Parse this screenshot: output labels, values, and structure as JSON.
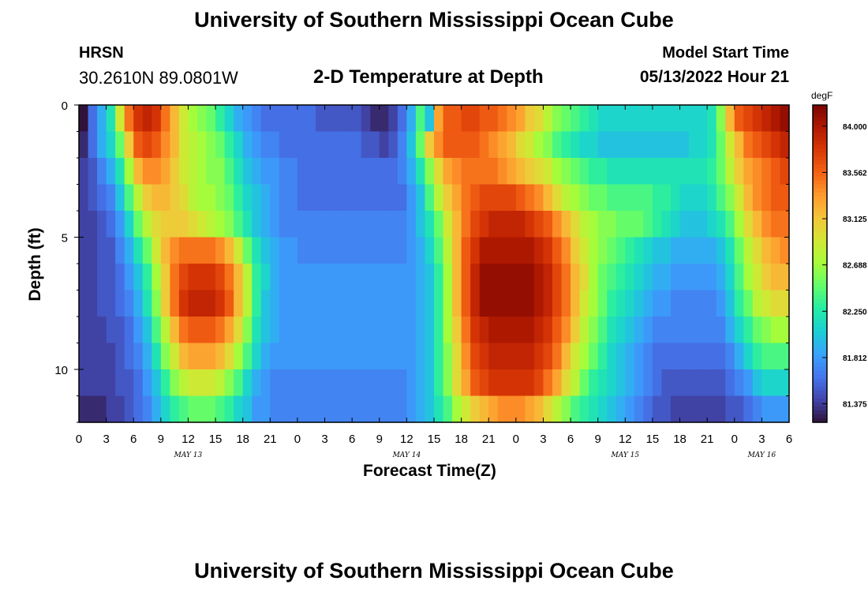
{
  "header": {
    "title": "University of Southern Mississippi Ocean Cube",
    "station": "HRSN",
    "coords": "30.2610N  89.0801W",
    "subtitle": "2-D Temperature at Depth",
    "model_start_label": "Model Start Time",
    "model_start_value": "05/13/2022 Hour 21"
  },
  "footer": {
    "title": "University of Southern Mississippi Ocean Cube"
  },
  "colors": {
    "background": "#ffffff",
    "colormap": [
      "#30123b",
      "#4145ab",
      "#4675ed",
      "#39a2fc",
      "#1bcfd4",
      "#24eca6",
      "#61fc6c",
      "#a4fc3b",
      "#d1e834",
      "#f3c63a",
      "#fe9b2d",
      "#f36315",
      "#d93806",
      "#b11901",
      "#7a0402"
    ]
  },
  "chart_data": {
    "type": "heatmap",
    "title": "2-D Temperature at Depth",
    "xlabel": "Forecast Time(Z)",
    "ylabel": "Depth (ft)",
    "x_unit": "hours since 05/13 00Z",
    "xlim": [
      0,
      78
    ],
    "ylim": [
      0,
      12
    ],
    "y_inverted": true,
    "x_tick_values": [
      0,
      3,
      6,
      9,
      12,
      15,
      18,
      21,
      24,
      27,
      30,
      33,
      36,
      39,
      42,
      45,
      48,
      51,
      54,
      57,
      60,
      63,
      66,
      69,
      72,
      75,
      78
    ],
    "x_tick_labels": [
      "0",
      "3",
      "6",
      "9",
      "12",
      "15",
      "18",
      "21",
      "0",
      "3",
      "6",
      "9",
      "12",
      "15",
      "18",
      "21",
      "0",
      "3",
      "6",
      "9",
      "12",
      "15",
      "18",
      "21",
      "0",
      "3",
      "6"
    ],
    "date_labels": [
      {
        "label": "MAY 13",
        "x": 12
      },
      {
        "label": "MAY 14",
        "x": 36
      },
      {
        "label": "MAY 15",
        "x": 60
      },
      {
        "label": "MAY 16",
        "x": 75
      }
    ],
    "y_tick_values": [
      0,
      5,
      10
    ],
    "y_tick_labels": [
      "0",
      "5",
      "10"
    ],
    "y_minor_ticks": [
      1,
      2,
      3,
      4,
      6,
      7,
      8,
      9,
      11,
      12
    ],
    "colorbar": {
      "unit": "degF",
      "min": 81.2,
      "max": 84.2,
      "tick_values": [
        84.0,
        83.562,
        83.125,
        82.688,
        82.25,
        81.812,
        81.375
      ],
      "tick_labels": [
        "84.000",
        "83.562",
        "83.125",
        "82.688",
        "82.250",
        "81.812",
        "81.375"
      ]
    },
    "grid": {
      "x_step_hours": 1,
      "depth_levels_ft": [
        0.5,
        1.5,
        2.5,
        3.5,
        4.5,
        5.5,
        6.5,
        7.5,
        8.5,
        9.5,
        10.5,
        11.5
      ],
      "time_hours": [
        0,
        1,
        2,
        3,
        4,
        5,
        6,
        7,
        8,
        9,
        10,
        11,
        12,
        13,
        14,
        15,
        16,
        17,
        18,
        19,
        20,
        21,
        22,
        23,
        24,
        25,
        26,
        27,
        28,
        29,
        30,
        31,
        32,
        33,
        34,
        35,
        36,
        37,
        38,
        39,
        40,
        41,
        42,
        43,
        44,
        45,
        46,
        47,
        48,
        49,
        50,
        51,
        52,
        53,
        54,
        55,
        56,
        57,
        58,
        59,
        60,
        61,
        62,
        63,
        64,
        65,
        66,
        67,
        68,
        69,
        70,
        71,
        72,
        73,
        74,
        75,
        76,
        77
      ],
      "temperature_degF": [
        [
          81.1,
          81.6,
          81.9,
          82.2,
          82.9,
          83.5,
          83.8,
          83.9,
          83.8,
          83.5,
          83.2,
          82.9,
          82.7,
          82.6,
          82.5,
          82.3,
          82.1,
          81.9,
          81.8,
          81.7,
          81.6,
          81.6,
          81.6,
          81.6,
          81.6,
          81.6,
          81.5,
          81.5,
          81.5,
          81.5,
          81.5,
          81.4,
          81.3,
          81.3,
          81.4,
          81.6,
          81.9,
          82.4,
          82.0,
          83.3,
          83.6,
          83.6,
          83.7,
          83.7,
          83.6,
          83.6,
          83.5,
          83.4,
          83.3,
          83.1,
          83.0,
          82.8,
          82.6,
          82.5,
          82.4,
          82.3,
          82.2,
          82.1,
          82.1,
          82.1,
          82.1,
          82.1,
          82.1,
          82.1,
          82.1,
          82.1,
          82.1,
          82.1,
          82.1,
          82.2,
          82.6,
          83.2,
          83.6,
          83.7,
          83.8,
          83.9,
          84.0,
          84.1
        ],
        [
          81.3,
          81.6,
          81.9,
          82.1,
          82.5,
          83.1,
          83.6,
          83.7,
          83.6,
          83.4,
          83.2,
          82.9,
          82.8,
          82.7,
          82.6,
          82.5,
          82.3,
          82.1,
          81.9,
          81.8,
          81.7,
          81.7,
          81.6,
          81.6,
          81.6,
          81.6,
          81.6,
          81.6,
          81.6,
          81.6,
          81.6,
          81.5,
          81.5,
          81.4,
          81.5,
          81.7,
          82.0,
          82.5,
          83.1,
          83.4,
          83.6,
          83.6,
          83.6,
          83.6,
          83.5,
          83.4,
          83.3,
          83.2,
          83.0,
          82.9,
          82.7,
          82.6,
          82.4,
          82.3,
          82.2,
          82.1,
          82.1,
          82.0,
          82.0,
          82.0,
          82.0,
          82.0,
          82.0,
          82.0,
          82.0,
          82.0,
          82.0,
          82.1,
          82.1,
          82.2,
          82.5,
          82.9,
          83.2,
          83.5,
          83.6,
          83.7,
          83.8,
          83.9
        ],
        [
          81.4,
          81.5,
          81.7,
          81.9,
          82.2,
          82.7,
          83.2,
          83.4,
          83.4,
          83.3,
          83.1,
          82.9,
          82.8,
          82.7,
          82.6,
          82.6,
          82.4,
          82.2,
          82.0,
          81.9,
          81.8,
          81.8,
          81.7,
          81.7,
          81.6,
          81.6,
          81.6,
          81.6,
          81.6,
          81.6,
          81.6,
          81.6,
          81.6,
          81.6,
          81.6,
          81.7,
          81.9,
          82.2,
          82.6,
          83.0,
          83.3,
          83.4,
          83.5,
          83.5,
          83.5,
          83.5,
          83.4,
          83.3,
          83.2,
          83.1,
          83.0,
          82.9,
          82.7,
          82.6,
          82.5,
          82.4,
          82.3,
          82.3,
          82.2,
          82.2,
          82.2,
          82.2,
          82.2,
          82.2,
          82.2,
          82.2,
          82.2,
          82.2,
          82.2,
          82.3,
          82.5,
          82.8,
          83.1,
          83.3,
          83.4,
          83.5,
          83.6,
          83.7
        ],
        [
          81.4,
          81.5,
          81.6,
          81.7,
          82.0,
          82.4,
          82.8,
          83.1,
          83.2,
          83.2,
          83.1,
          83.0,
          82.8,
          82.7,
          82.7,
          82.6,
          82.5,
          82.3,
          82.1,
          82.0,
          81.9,
          81.8,
          81.7,
          81.7,
          81.6,
          81.6,
          81.6,
          81.6,
          81.6,
          81.6,
          81.6,
          81.6,
          81.6,
          81.6,
          81.6,
          81.6,
          81.8,
          82.0,
          82.4,
          82.8,
          83.1,
          83.3,
          83.5,
          83.6,
          83.7,
          83.7,
          83.7,
          83.7,
          83.6,
          83.5,
          83.4,
          83.2,
          83.0,
          82.8,
          82.7,
          82.6,
          82.5,
          82.5,
          82.4,
          82.4,
          82.4,
          82.4,
          82.4,
          82.3,
          82.3,
          82.2,
          82.1,
          82.1,
          82.1,
          82.2,
          82.4,
          82.6,
          82.9,
          83.2,
          83.4,
          83.5,
          83.6,
          83.6
        ],
        [
          81.4,
          81.4,
          81.5,
          81.6,
          81.8,
          82.1,
          82.5,
          82.8,
          83.0,
          83.1,
          83.1,
          83.1,
          83.0,
          82.9,
          82.8,
          82.7,
          82.6,
          82.4,
          82.2,
          82.0,
          81.9,
          81.8,
          81.7,
          81.7,
          81.7,
          81.7,
          81.7,
          81.7,
          81.7,
          81.7,
          81.7,
          81.7,
          81.7,
          81.7,
          81.7,
          81.7,
          81.8,
          82.0,
          82.2,
          82.5,
          82.9,
          83.2,
          83.5,
          83.7,
          83.8,
          83.9,
          83.9,
          83.9,
          83.9,
          83.8,
          83.7,
          83.6,
          83.4,
          83.2,
          83.0,
          82.8,
          82.7,
          82.6,
          82.6,
          82.5,
          82.5,
          82.5,
          82.4,
          82.3,
          82.2,
          82.1,
          82.0,
          82.0,
          82.0,
          82.1,
          82.2,
          82.4,
          82.7,
          83.0,
          83.2,
          83.4,
          83.5,
          83.5
        ],
        [
          81.4,
          81.4,
          81.5,
          81.5,
          81.7,
          81.9,
          82.2,
          82.5,
          82.9,
          83.2,
          83.4,
          83.5,
          83.5,
          83.5,
          83.5,
          83.4,
          83.2,
          82.9,
          82.5,
          82.2,
          82.0,
          81.9,
          81.8,
          81.8,
          81.7,
          81.7,
          81.7,
          81.7,
          81.7,
          81.7,
          81.7,
          81.7,
          81.7,
          81.7,
          81.7,
          81.7,
          81.8,
          81.9,
          82.1,
          82.4,
          82.8,
          83.2,
          83.6,
          83.8,
          84.0,
          84.0,
          84.0,
          84.0,
          84.0,
          84.0,
          83.9,
          83.8,
          83.6,
          83.4,
          83.1,
          82.9,
          82.7,
          82.6,
          82.5,
          82.4,
          82.3,
          82.2,
          82.1,
          82.0,
          82.0,
          81.9,
          81.9,
          81.9,
          81.9,
          81.9,
          82.0,
          82.2,
          82.5,
          82.8,
          83.0,
          83.2,
          83.3,
          83.4
        ],
        [
          81.4,
          81.4,
          81.5,
          81.5,
          81.6,
          81.8,
          82.0,
          82.3,
          82.7,
          83.1,
          83.5,
          83.7,
          83.8,
          83.8,
          83.8,
          83.7,
          83.5,
          83.2,
          82.8,
          82.3,
          82.1,
          81.9,
          81.8,
          81.8,
          81.8,
          81.8,
          81.8,
          81.8,
          81.8,
          81.8,
          81.8,
          81.8,
          81.8,
          81.8,
          81.8,
          81.8,
          81.8,
          81.9,
          82.0,
          82.3,
          82.7,
          83.2,
          83.6,
          83.9,
          84.1,
          84.1,
          84.1,
          84.1,
          84.1,
          84.1,
          84.0,
          83.9,
          83.7,
          83.5,
          83.2,
          83.0,
          82.7,
          82.5,
          82.4,
          82.3,
          82.2,
          82.1,
          82.0,
          81.9,
          81.9,
          81.8,
          81.8,
          81.8,
          81.8,
          81.8,
          81.9,
          82.1,
          82.4,
          82.7,
          82.9,
          83.1,
          83.2,
          83.2
        ],
        [
          81.4,
          81.4,
          81.5,
          81.5,
          81.6,
          81.7,
          81.9,
          82.2,
          82.6,
          83.1,
          83.5,
          83.8,
          83.9,
          83.9,
          83.9,
          83.8,
          83.6,
          83.2,
          82.8,
          82.3,
          82.0,
          81.9,
          81.8,
          81.8,
          81.8,
          81.8,
          81.8,
          81.8,
          81.8,
          81.8,
          81.8,
          81.8,
          81.8,
          81.8,
          81.8,
          81.8,
          81.8,
          81.9,
          82.0,
          82.3,
          82.7,
          83.2,
          83.6,
          83.9,
          84.1,
          84.1,
          84.1,
          84.1,
          84.1,
          84.1,
          84.0,
          83.9,
          83.7,
          83.5,
          83.2,
          82.9,
          82.7,
          82.5,
          82.3,
          82.2,
          82.1,
          82.0,
          81.9,
          81.8,
          81.8,
          81.7,
          81.7,
          81.7,
          81.7,
          81.7,
          81.8,
          82.0,
          82.3,
          82.5,
          82.8,
          82.9,
          83.0,
          83.0
        ],
        [
          81.4,
          81.4,
          81.4,
          81.5,
          81.5,
          81.6,
          81.8,
          82.0,
          82.4,
          82.8,
          83.2,
          83.5,
          83.6,
          83.6,
          83.6,
          83.5,
          83.3,
          83.0,
          82.6,
          82.2,
          82.0,
          81.9,
          81.8,
          81.8,
          81.8,
          81.8,
          81.8,
          81.8,
          81.8,
          81.8,
          81.8,
          81.8,
          81.8,
          81.8,
          81.8,
          81.8,
          81.8,
          81.9,
          82.0,
          82.3,
          82.7,
          83.1,
          83.5,
          83.8,
          83.9,
          84.0,
          84.0,
          84.0,
          84.0,
          84.0,
          83.9,
          83.8,
          83.6,
          83.4,
          83.1,
          82.8,
          82.6,
          82.4,
          82.2,
          82.1,
          82.0,
          81.9,
          81.8,
          81.7,
          81.7,
          81.7,
          81.7,
          81.7,
          81.7,
          81.7,
          81.7,
          81.9,
          82.1,
          82.3,
          82.5,
          82.6,
          82.7,
          82.7
        ],
        [
          81.4,
          81.4,
          81.4,
          81.4,
          81.5,
          81.6,
          81.7,
          81.9,
          82.2,
          82.6,
          82.9,
          83.2,
          83.3,
          83.3,
          83.3,
          83.2,
          83.0,
          82.7,
          82.4,
          82.1,
          81.9,
          81.8,
          81.8,
          81.8,
          81.8,
          81.8,
          81.8,
          81.8,
          81.8,
          81.8,
          81.8,
          81.8,
          81.8,
          81.8,
          81.8,
          81.8,
          81.8,
          81.9,
          82.0,
          82.3,
          82.6,
          83.0,
          83.4,
          83.7,
          83.8,
          83.9,
          83.9,
          83.9,
          83.9,
          83.9,
          83.8,
          83.7,
          83.5,
          83.2,
          82.9,
          82.7,
          82.5,
          82.3,
          82.1,
          82.0,
          81.9,
          81.8,
          81.7,
          81.6,
          81.6,
          81.6,
          81.6,
          81.6,
          81.6,
          81.6,
          81.6,
          81.7,
          81.9,
          82.1,
          82.3,
          82.4,
          82.4,
          82.4
        ],
        [
          81.4,
          81.4,
          81.4,
          81.4,
          81.5,
          81.5,
          81.6,
          81.8,
          82.0,
          82.3,
          82.6,
          82.8,
          82.9,
          82.9,
          82.9,
          82.8,
          82.6,
          82.4,
          82.1,
          81.9,
          81.8,
          81.7,
          81.7,
          81.7,
          81.7,
          81.7,
          81.7,
          81.7,
          81.7,
          81.7,
          81.7,
          81.7,
          81.7,
          81.7,
          81.7,
          81.7,
          81.8,
          81.9,
          82.0,
          82.3,
          82.6,
          83.0,
          83.3,
          83.6,
          83.7,
          83.8,
          83.8,
          83.8,
          83.8,
          83.8,
          83.7,
          83.5,
          83.3,
          83.0,
          82.8,
          82.5,
          82.3,
          82.2,
          82.1,
          82.0,
          81.9,
          81.8,
          81.7,
          81.6,
          81.5,
          81.5,
          81.5,
          81.5,
          81.5,
          81.5,
          81.5,
          81.6,
          81.7,
          81.8,
          82.0,
          82.1,
          82.1,
          82.1
        ],
        [
          81.3,
          81.3,
          81.3,
          81.4,
          81.4,
          81.5,
          81.6,
          81.7,
          81.9,
          82.1,
          82.3,
          82.4,
          82.5,
          82.5,
          82.5,
          82.4,
          82.3,
          82.1,
          82.0,
          81.8,
          81.8,
          81.7,
          81.7,
          81.7,
          81.7,
          81.7,
          81.7,
          81.7,
          81.7,
          81.7,
          81.7,
          81.7,
          81.7,
          81.7,
          81.7,
          81.7,
          81.8,
          81.9,
          82.0,
          82.2,
          82.4,
          82.7,
          82.9,
          83.1,
          83.2,
          83.3,
          83.4,
          83.4,
          83.4,
          83.3,
          83.2,
          83.0,
          82.8,
          82.6,
          82.4,
          82.3,
          82.2,
          82.1,
          82.0,
          81.9,
          81.8,
          81.7,
          81.6,
          81.5,
          81.5,
          81.4,
          81.4,
          81.4,
          81.4,
          81.4,
          81.4,
          81.5,
          81.5,
          81.6,
          81.7,
          81.8,
          81.8,
          81.8
        ]
      ]
    }
  }
}
